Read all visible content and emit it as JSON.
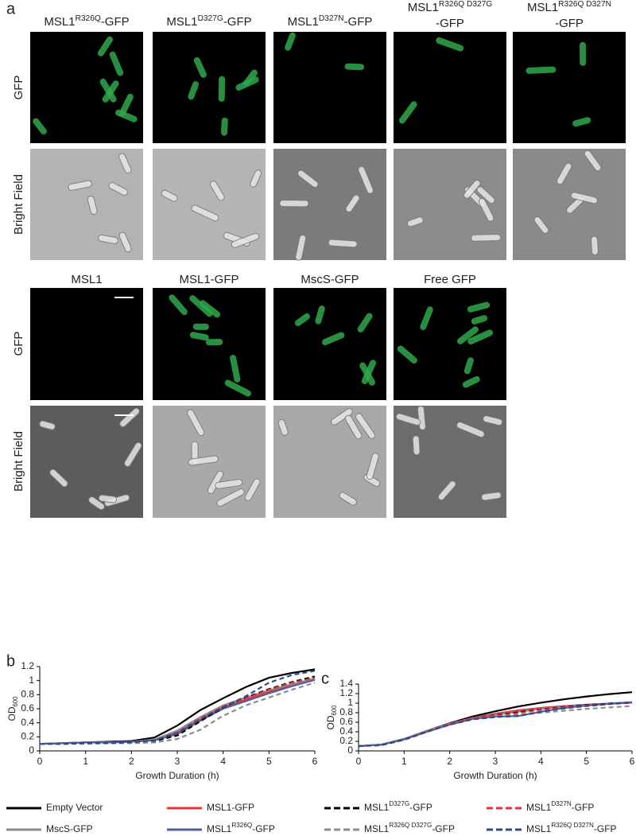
{
  "panel_a": {
    "letter": "a",
    "row_labels": [
      "GFP",
      "Bright Field"
    ],
    "top_headers": [
      {
        "text": "MSL1",
        "sup": "R326Q",
        "after": "-GFP"
      },
      {
        "text": "MSL1",
        "sup": "D327G",
        "after": "-GFP"
      },
      {
        "text": "MSL1",
        "sup": "D327N",
        "after": "-GFP"
      },
      {
        "text": "MSL1",
        "sup": "R326Q D327G",
        "line2": "-GFP"
      },
      {
        "text": "MSL1",
        "sup": "R326Q D327N",
        "line2": "-GFP"
      }
    ],
    "bottom_headers": [
      {
        "text": "MSL1"
      },
      {
        "text": "MSL1-GFP"
      },
      {
        "text": "MscS-GFP"
      },
      {
        "text": "Free GFP"
      }
    ]
  },
  "chart_data": [
    {
      "type": "line",
      "letter": "b",
      "x_label": "Growth Duration (h)",
      "y_label": "OD",
      "y_label_sub": "600",
      "x": [
        0,
        0.5,
        1,
        1.5,
        2,
        2.5,
        3,
        3.5,
        4,
        4.5,
        5,
        5.5,
        6
      ],
      "xlim": [
        0,
        6
      ],
      "xticks": [
        0,
        1,
        2,
        3,
        4,
        5,
        6
      ],
      "ylim": [
        0,
        1.2
      ],
      "yticks": [
        0,
        0.2,
        0.4,
        0.6,
        0.8,
        1,
        1.2
      ],
      "series": [
        {
          "name": "Empty Vector",
          "color": "#000000",
          "dash": false,
          "values": [
            0.1,
            0.11,
            0.12,
            0.13,
            0.14,
            0.19,
            0.36,
            0.58,
            0.75,
            0.91,
            1.04,
            1.11,
            1.16
          ]
        },
        {
          "name": "MSL1-GFP",
          "color": "#e8333a",
          "dash": false,
          "values": [
            0.1,
            0.11,
            0.12,
            0.12,
            0.13,
            0.16,
            0.26,
            0.45,
            0.62,
            0.73,
            0.84,
            0.94,
            1.02
          ]
        },
        {
          "name": "MscS-GFP",
          "color": "#8c8c8c",
          "dash": false,
          "values": [
            0.1,
            0.11,
            0.12,
            0.12,
            0.13,
            0.16,
            0.29,
            0.48,
            0.65,
            0.76,
            0.86,
            0.95,
            1.03
          ]
        },
        {
          "name": "MSL1",
          "sup": "R326Q",
          "after": "-GFP",
          "color": "#4a5fa8",
          "dash": false,
          "values": [
            0.1,
            0.11,
            0.12,
            0.12,
            0.13,
            0.15,
            0.24,
            0.43,
            0.6,
            0.71,
            0.82,
            0.92,
            1.01
          ]
        },
        {
          "name": "MSL1",
          "sup": "D327G",
          "after": "-GFP",
          "color": "#000000",
          "dash": true,
          "values": [
            0.1,
            0.1,
            0.11,
            0.11,
            0.12,
            0.14,
            0.22,
            0.42,
            0.62,
            0.76,
            0.88,
            0.98,
            1.06
          ]
        },
        {
          "name": "MSL1",
          "sup": "D327N",
          "after": "-GFP",
          "color": "#e8333a",
          "dash": true,
          "values": [
            0.1,
            0.1,
            0.11,
            0.11,
            0.12,
            0.15,
            0.26,
            0.46,
            0.63,
            0.75,
            0.87,
            0.97,
            1.04
          ]
        },
        {
          "name": "MSL1",
          "sup": "R326Q D327G",
          "after": "-GFP",
          "color": "#8c8c8c",
          "dash": true,
          "values": [
            0.1,
            0.1,
            0.1,
            0.11,
            0.11,
            0.12,
            0.17,
            0.3,
            0.5,
            0.65,
            0.76,
            0.87,
            0.97
          ]
        },
        {
          "name": "MSL1",
          "sup": "R326Q D327N",
          "after": "-GFP",
          "color": "#2c4a8c",
          "dash": true,
          "values": [
            0.1,
            0.1,
            0.11,
            0.11,
            0.12,
            0.15,
            0.26,
            0.45,
            0.62,
            0.78,
            0.97,
            1.08,
            1.14
          ]
        }
      ]
    },
    {
      "type": "line",
      "letter": "c",
      "x_label": "Growth Duration (h)",
      "y_label": "OD",
      "y_label_sub": "600",
      "x": [
        0,
        0.5,
        1,
        1.5,
        2,
        2.5,
        3,
        3.5,
        4,
        4.5,
        5,
        5.5,
        6
      ],
      "xlim": [
        0,
        6
      ],
      "xticks": [
        0,
        1,
        2,
        3,
        4,
        5,
        6
      ],
      "ylim": [
        0,
        1.4
      ],
      "yticks": [
        0,
        0.2,
        0.4,
        0.6,
        0.8,
        1,
        1.2,
        1.4
      ],
      "series": [
        {
          "color": "#000000",
          "dash": false,
          "values": [
            0.1,
            0.13,
            0.25,
            0.42,
            0.58,
            0.72,
            0.83,
            0.93,
            1.01,
            1.08,
            1.14,
            1.19,
            1.23
          ]
        },
        {
          "color": "#e8333a",
          "dash": false,
          "values": [
            0.1,
            0.13,
            0.25,
            0.42,
            0.57,
            0.69,
            0.78,
            0.85,
            0.9,
            0.94,
            0.97,
            0.99,
            1.01
          ]
        },
        {
          "color": "#8c8c8c",
          "dash": false,
          "values": [
            0.1,
            0.13,
            0.25,
            0.42,
            0.57,
            0.68,
            0.76,
            0.82,
            0.88,
            0.93,
            0.96,
            0.99,
            1.02
          ]
        },
        {
          "color": "#4a5fa8",
          "dash": false,
          "values": [
            0.1,
            0.13,
            0.24,
            0.4,
            0.55,
            0.67,
            0.72,
            0.73,
            0.82,
            0.9,
            0.95,
            0.99,
            1.02
          ]
        },
        {
          "color": "#000000",
          "dash": true,
          "values": [
            0.1,
            0.12,
            0.23,
            0.4,
            0.56,
            0.68,
            0.75,
            0.81,
            0.87,
            0.92,
            0.96,
            0.99,
            1.01
          ]
        },
        {
          "color": "#e8333a",
          "dash": true,
          "values": [
            0.1,
            0.12,
            0.24,
            0.41,
            0.57,
            0.68,
            0.74,
            0.79,
            0.86,
            0.91,
            0.95,
            0.98,
            1.01
          ]
        },
        {
          "color": "#8c8c8c",
          "dash": true,
          "values": [
            0.1,
            0.12,
            0.23,
            0.4,
            0.55,
            0.66,
            0.71,
            0.75,
            0.8,
            0.84,
            0.88,
            0.91,
            0.94
          ]
        },
        {
          "color": "#2c4a8c",
          "dash": true,
          "values": [
            0.1,
            0.12,
            0.24,
            0.4,
            0.55,
            0.66,
            0.71,
            0.73,
            0.82,
            0.89,
            0.94,
            0.98,
            1.02
          ]
        }
      ]
    }
  ]
}
